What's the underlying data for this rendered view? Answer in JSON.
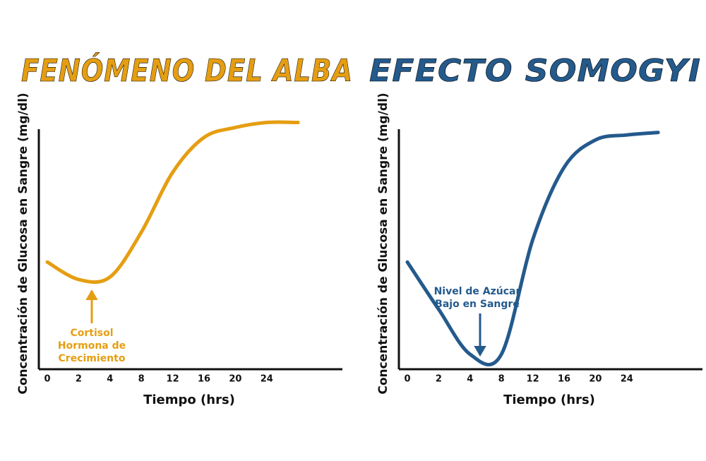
{
  "chart_data": [
    {
      "type": "line",
      "title": "FENÓMENO DEL ALBA",
      "color": "#E59E12",
      "x_label": "Tiempo (hrs)",
      "y_label": "Concentración de Glucosa en Sangre (mg/dl)",
      "categories": [
        "0",
        "2",
        "4",
        "8",
        "12",
        "16",
        "20",
        "24",
        null
      ],
      "values": [
        43,
        36,
        37,
        55,
        79,
        93,
        97,
        99,
        99
      ],
      "ylim": [
        0,
        100
      ],
      "annotation": [
        "Cortisol",
        "Hormona de",
        "Crecimiento"
      ]
    },
    {
      "type": "line",
      "title": "EFECTO SOMOGYI",
      "color": "#245A8C",
      "x_label": "Tiempo (hrs)",
      "y_label": "Concentración de Glucosa en Sangre (mg/dl)",
      "categories": [
        "0",
        "2",
        "4",
        "8",
        "12",
        "16",
        "20",
        "24",
        null
      ],
      "values": [
        43,
        24,
        6,
        6,
        52,
        81,
        92,
        94,
        95
      ],
      "ylim": [
        0,
        100
      ],
      "annotation": [
        "Nivel de Azúcar",
        "Bajo en Sangre"
      ]
    }
  ]
}
